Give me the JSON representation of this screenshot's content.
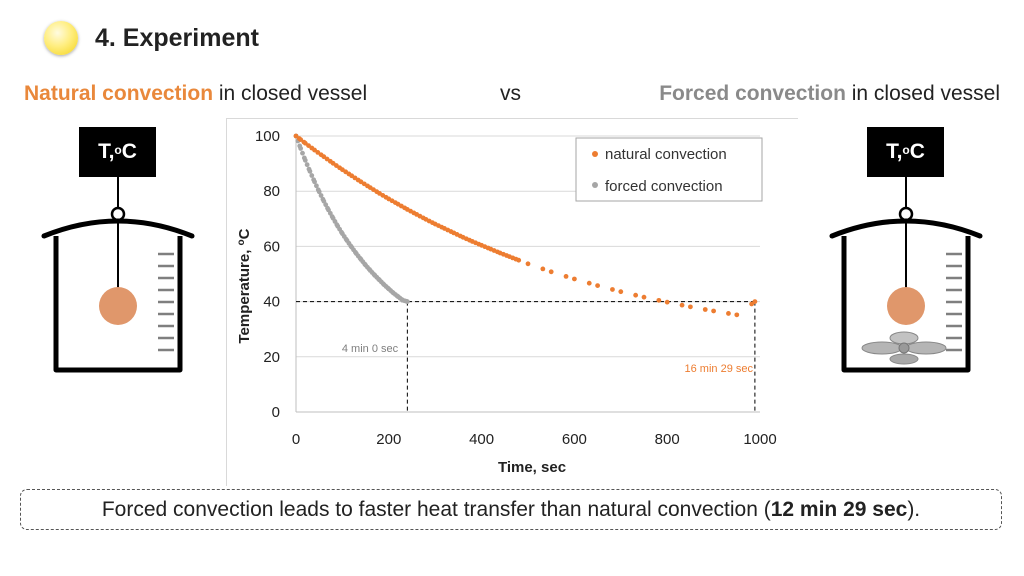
{
  "header": {
    "title": "4. Experiment"
  },
  "subtitles": {
    "left_strong": "Natural convection",
    "left_rest": " in closed vessel",
    "vs": "vs",
    "right_strong": "Forced convection",
    "right_rest": " in closed vessel"
  },
  "thermometer_label": {
    "text": "T, ",
    "sup": "o",
    "unit": "C"
  },
  "colors": {
    "natural": "#ed7d31",
    "forced": "#a6a6a6",
    "ball": "#e0976b",
    "title_orange": "#e9883b"
  },
  "icons": {
    "bullet": "yellow-circle-bullet-icon",
    "vessel": "beaker-icon",
    "fan": "propeller-fan-icon"
  },
  "chart_data": {
    "type": "scatter",
    "xlabel": "Time, sec",
    "ylabel": "Temperature, oC",
    "xlim": [
      0,
      1000
    ],
    "ylim": [
      0,
      100
    ],
    "xticks": [
      0,
      200,
      400,
      600,
      800,
      1000
    ],
    "yticks": [
      0,
      20,
      40,
      60,
      80,
      100
    ],
    "grid": "horizontal",
    "legend_position": "top-right",
    "series": [
      {
        "name": "natural convection",
        "color": "#ed7d31",
        "points": [
          [
            0,
            100
          ],
          [
            10,
            98.7
          ],
          [
            20,
            97.4
          ],
          [
            40,
            94.9
          ],
          [
            60,
            92.5
          ],
          [
            80,
            90.1
          ],
          [
            100,
            87.8
          ],
          [
            120,
            85.6
          ],
          [
            140,
            83.4
          ],
          [
            160,
            81.3
          ],
          [
            180,
            79.2
          ],
          [
            200,
            77.2
          ],
          [
            220,
            75.3
          ],
          [
            240,
            73.4
          ],
          [
            260,
            71.6
          ],
          [
            280,
            69.8
          ],
          [
            300,
            68.1
          ],
          [
            320,
            66.5
          ],
          [
            340,
            64.9
          ],
          [
            360,
            63.3
          ],
          [
            380,
            61.8
          ],
          [
            400,
            60.4
          ],
          [
            420,
            59.0
          ],
          [
            440,
            57.6
          ],
          [
            460,
            56.3
          ],
          [
            480,
            55.0
          ],
          [
            500,
            53.7
          ],
          [
            550,
            50.8
          ],
          [
            600,
            48.2
          ],
          [
            650,
            45.8
          ],
          [
            700,
            43.6
          ],
          [
            750,
            41.6
          ],
          [
            800,
            39.8
          ],
          [
            850,
            38.1
          ],
          [
            900,
            36.6
          ],
          [
            950,
            35.2
          ],
          [
            989,
            40.0
          ]
        ]
      },
      {
        "name": "forced convection",
        "color": "#a6a6a6",
        "points": [
          [
            0,
            100
          ],
          [
            10,
            95.5
          ],
          [
            20,
            91.2
          ],
          [
            30,
            87.2
          ],
          [
            40,
            83.4
          ],
          [
            50,
            79.8
          ],
          [
            60,
            76.4
          ],
          [
            70,
            73.2
          ],
          [
            80,
            70.2
          ],
          [
            90,
            67.3
          ],
          [
            100,
            64.6
          ],
          [
            110,
            62.1
          ],
          [
            120,
            59.7
          ],
          [
            130,
            57.4
          ],
          [
            140,
            55.3
          ],
          [
            150,
            53.2
          ],
          [
            160,
            51.3
          ],
          [
            170,
            49.5
          ],
          [
            180,
            47.8
          ],
          [
            190,
            46.1
          ],
          [
            200,
            44.6
          ],
          [
            210,
            43.1
          ],
          [
            220,
            41.8
          ],
          [
            230,
            40.5
          ],
          [
            240,
            40.0
          ]
        ]
      }
    ],
    "annotations": {
      "forced_time": "4 min 0 sec",
      "natural_time": "16 min 29 sec",
      "threshold_y": 40,
      "forced_x": 240,
      "natural_x": 989
    }
  },
  "conclusion": {
    "prefix": "Forced convection leads to faster heat transfer than natural convection (",
    "bold": "12 min 29 sec",
    "suffix": ")."
  }
}
